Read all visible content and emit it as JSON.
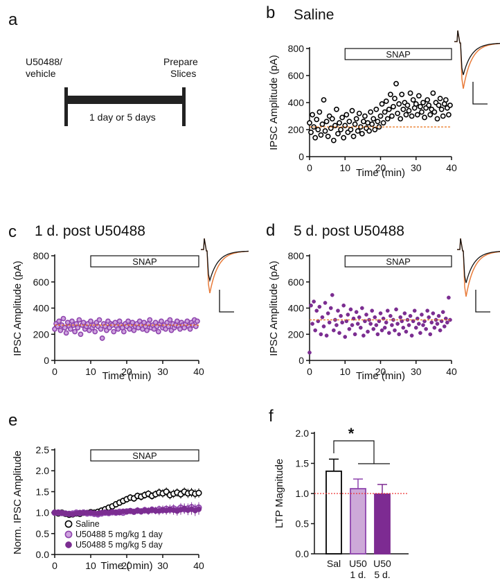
{
  "panel_labels": {
    "a": "a",
    "b": "b",
    "c": "c",
    "d": "d",
    "e": "e",
    "f": "f"
  },
  "timeline": {
    "start_label_line1": "U50488/",
    "start_label_line2": "vehicle",
    "end_label_line1": "Prepare",
    "end_label_line2": "Slices",
    "duration_label": "1 day or 5 days"
  },
  "colors": {
    "saline": "#000000",
    "u50_1day": "#8e44ad",
    "u50_1day_fill": "#c9a2d6",
    "u50_5day": "#7b2d91",
    "baseline_dash": "#e8731a",
    "trace_orange": "#e87b3a"
  },
  "chart_data": [
    {
      "id": "b",
      "type": "scatter",
      "title": "Saline",
      "xlabel": "Time  (min)",
      "ylabel": "IPSC Amplitude (pA)",
      "xlim": [
        0,
        40
      ],
      "ylim": [
        0,
        800
      ],
      "xticks": [
        "0",
        "10",
        "20",
        "30",
        "40"
      ],
      "yticks": [
        "0",
        "200",
        "400",
        "600",
        "800"
      ],
      "bar_label": "SNAP",
      "bar_range": [
        10,
        40
      ],
      "baseline": 220,
      "series": [
        {
          "marker": "open-circle",
          "color": "#000000",
          "x": [
            0,
            0.4,
            0.8,
            1.2,
            1.6,
            2,
            2.4,
            2.8,
            3.2,
            3.6,
            4,
            4.4,
            4.8,
            5.2,
            5.6,
            6,
            6.4,
            6.8,
            7.2,
            7.6,
            8,
            8.4,
            8.8,
            9.2,
            9.6,
            10,
            10.4,
            10.8,
            11.2,
            11.6,
            12,
            12.4,
            12.8,
            13.2,
            13.6,
            14,
            14.4,
            14.8,
            15.2,
            15.6,
            16,
            16.4,
            16.8,
            17.2,
            17.6,
            18,
            18.4,
            18.8,
            19.2,
            19.6,
            20,
            20.4,
            20.8,
            21.2,
            21.6,
            22,
            22.4,
            22.8,
            23.2,
            23.6,
            24,
            24.4,
            24.8,
            25.2,
            25.6,
            26,
            26.4,
            26.8,
            27.2,
            27.6,
            28,
            28.4,
            28.8,
            29.2,
            29.6,
            30,
            30.4,
            30.8,
            31.2,
            31.6,
            32,
            32.4,
            32.8,
            33.2,
            33.6,
            34,
            34.4,
            34.8,
            35.2,
            35.6,
            36,
            36.4,
            36.8,
            37.2,
            37.6,
            38,
            38.4,
            38.8,
            39.2,
            39.6
          ],
          "y": [
            250,
            180,
            310,
            220,
            140,
            275,
            200,
            330,
            160,
            240,
            420,
            190,
            260,
            150,
            300,
            210,
            280,
            120,
            230,
            350,
            170,
            250,
            200,
            290,
            140,
            230,
            310,
            180,
            260,
            200,
            340,
            150,
            240,
            280,
            190,
            320,
            220,
            170,
            260,
            300,
            210,
            250,
            190,
            330,
            240,
            280,
            200,
            350,
            260,
            220,
            300,
            390,
            250,
            330,
            410,
            280,
            350,
            460,
            300,
            370,
            430,
            540,
            320,
            390,
            280,
            460,
            350,
            400,
            310,
            380,
            340,
            470,
            300,
            420,
            360,
            390,
            310,
            450,
            370,
            330,
            400,
            290,
            360,
            420,
            380,
            310,
            350,
            470,
            330,
            400,
            280,
            380,
            430,
            350,
            300,
            390,
            420,
            360,
            310,
            380
          ]
        }
      ]
    },
    {
      "id": "c",
      "type": "scatter",
      "title": "1 d. post U50488",
      "xlabel": "Time  (min)",
      "ylabel": "IPSC Amplitude (pA)",
      "xlim": [
        0,
        40
      ],
      "ylim": [
        0,
        800
      ],
      "xticks": [
        "0",
        "10",
        "20",
        "30",
        "40"
      ],
      "yticks": [
        "0",
        "200",
        "400",
        "600",
        "800"
      ],
      "bar_label": "SNAP",
      "bar_range": [
        10,
        40
      ],
      "baseline": 270,
      "series": [
        {
          "marker": "light-circle",
          "color": "#8e44ad",
          "x": [
            0,
            0.4,
            0.8,
            1.2,
            1.6,
            2,
            2.4,
            2.8,
            3.2,
            3.6,
            4,
            4.4,
            4.8,
            5.2,
            5.6,
            6,
            6.4,
            6.8,
            7.2,
            7.6,
            8,
            8.4,
            8.8,
            9.2,
            9.6,
            10,
            10.4,
            10.8,
            11.2,
            11.6,
            12,
            12.4,
            12.8,
            13.2,
            13.6,
            14,
            14.4,
            14.8,
            15.2,
            15.6,
            16,
            16.4,
            16.8,
            17.2,
            17.6,
            18,
            18.4,
            18.8,
            19.2,
            19.6,
            20,
            20.4,
            20.8,
            21.2,
            21.6,
            22,
            22.4,
            22.8,
            23.2,
            23.6,
            24,
            24.4,
            24.8,
            25.2,
            25.6,
            26,
            26.4,
            26.8,
            27.2,
            27.6,
            28,
            28.4,
            28.8,
            29.2,
            29.6,
            30,
            30.4,
            30.8,
            31.2,
            31.6,
            32,
            32.4,
            32.8,
            33.2,
            33.6,
            34,
            34.4,
            34.8,
            35.2,
            35.6,
            36,
            36.4,
            36.8,
            37.2,
            37.6,
            38,
            38.4,
            38.8,
            39.2,
            39.6
          ],
          "y": [
            240,
            280,
            260,
            300,
            230,
            270,
            320,
            250,
            210,
            290,
            260,
            240,
            300,
            270,
            220,
            280,
            250,
            310,
            200,
            270,
            290,
            240,
            260,
            280,
            230,
            300,
            250,
            270,
            220,
            290,
            260,
            310,
            240,
            170,
            280,
            260,
            230,
            300,
            250,
            280,
            270,
            220,
            290,
            260,
            240,
            300,
            270,
            250,
            220,
            280,
            260,
            300,
            240,
            270,
            290,
            230,
            260,
            280,
            250,
            300,
            270,
            240,
            290,
            260,
            230,
            280,
            310,
            250,
            270,
            240,
            290,
            260,
            220,
            280,
            300,
            250,
            270,
            240,
            290,
            260,
            310,
            230,
            280,
            250,
            270,
            300,
            260,
            240,
            290,
            270,
            250,
            280,
            300,
            260,
            240,
            290,
            270,
            310,
            260,
            300
          ]
        }
      ]
    },
    {
      "id": "d",
      "type": "scatter",
      "title": "5 d. post U50488",
      "xlabel": "Time  (min)",
      "ylabel": "IPSC Amplitude (pA)",
      "xlim": [
        0,
        40
      ],
      "ylim": [
        0,
        800
      ],
      "xticks": [
        "0",
        "10",
        "20",
        "30",
        "40"
      ],
      "yticks": [
        "0",
        "200",
        "400",
        "600",
        "800"
      ],
      "bar_label": "SNAP",
      "bar_range": [
        10,
        40
      ],
      "baseline": 310,
      "series": [
        {
          "marker": "filled-circle",
          "color": "#7b2d91",
          "x": [
            0,
            0.4,
            0.8,
            1.2,
            1.6,
            2,
            2.4,
            2.8,
            3.2,
            3.6,
            4,
            4.4,
            4.8,
            5.2,
            5.6,
            6,
            6.4,
            6.8,
            7.2,
            7.6,
            8,
            8.4,
            8.8,
            9.2,
            9.6,
            10,
            10.4,
            10.8,
            11.2,
            11.6,
            12,
            12.4,
            12.8,
            13.2,
            13.6,
            14,
            14.4,
            14.8,
            15.2,
            15.6,
            16,
            16.4,
            16.8,
            17.2,
            17.6,
            18,
            18.4,
            18.8,
            19.2,
            19.6,
            20,
            20.4,
            20.8,
            21.2,
            21.6,
            22,
            22.4,
            22.8,
            23.2,
            23.6,
            24,
            24.4,
            24.8,
            25.2,
            25.6,
            26,
            26.4,
            26.8,
            27.2,
            27.6,
            28,
            28.4,
            28.8,
            29.2,
            29.6,
            30,
            30.4,
            30.8,
            31.2,
            31.6,
            32,
            32.4,
            32.8,
            33.2,
            33.6,
            34,
            34.4,
            34.8,
            35.2,
            35.6,
            36,
            36.4,
            36.8,
            37.2,
            37.6,
            38,
            38.4,
            38.8,
            39.2,
            39.6
          ],
          "y": [
            60,
            420,
            280,
            450,
            230,
            380,
            300,
            410,
            200,
            330,
            260,
            440,
            190,
            360,
            290,
            400,
            500,
            230,
            310,
            270,
            380,
            210,
            340,
            290,
            420,
            180,
            300,
            350,
            240,
            390,
            270,
            320,
            200,
            370,
            280,
            330,
            250,
            400,
            190,
            300,
            350,
            220,
            310,
            280,
            380,
            240,
            330,
            270,
            200,
            300,
            360,
            230,
            320,
            250,
            290,
            380,
            210,
            340,
            270,
            310,
            230,
            390,
            280,
            200,
            330,
            300,
            250,
            360,
            220,
            310,
            270,
            340,
            190,
            300,
            380,
            250,
            320,
            280,
            210,
            350,
            270,
            300,
            240,
            380,
            330,
            200,
            290,
            360,
            250,
            310,
            280,
            340,
            230,
            300,
            370,
            260,
            320,
            290,
            480,
            310
          ]
        }
      ]
    },
    {
      "id": "e",
      "type": "line",
      "title": "",
      "xlabel": "Time ( min)",
      "ylabel": "Norm. IPSC Amplitude",
      "xlim": [
        0,
        40
      ],
      "ylim": [
        0,
        2.5
      ],
      "xticks": [
        "0",
        "10",
        "20",
        "30",
        "40"
      ],
      "yticks": [
        "0.0",
        "0.5",
        "1.0",
        "1.5",
        "2.0",
        "2.5"
      ],
      "bar_label": "SNAP",
      "bar_range": [
        10,
        40
      ],
      "x": [
        0,
        1,
        2,
        3,
        4,
        5,
        6,
        7,
        8,
        9,
        10,
        11,
        12,
        13,
        14,
        15,
        16,
        17,
        18,
        19,
        20,
        21,
        22,
        23,
        24,
        25,
        26,
        27,
        28,
        29,
        30,
        31,
        32,
        33,
        34,
        35,
        36,
        37,
        38,
        39,
        40
      ],
      "series": [
        {
          "name": "Saline",
          "marker": "open-circle",
          "color": "#000000",
          "values": [
            1.0,
            0.98,
            1.0,
            0.97,
            0.95,
            0.96,
            0.98,
            0.97,
            1.0,
            0.99,
            1.01,
            1.0,
            1.02,
            1.05,
            1.08,
            1.12,
            1.15,
            1.2,
            1.24,
            1.28,
            1.32,
            1.36,
            1.34,
            1.4,
            1.38,
            1.42,
            1.45,
            1.4,
            1.44,
            1.48,
            1.46,
            1.5,
            1.42,
            1.45,
            1.48,
            1.44,
            1.5,
            1.46,
            1.48,
            1.45,
            1.47
          ],
          "err": [
            0.04,
            0.04,
            0.04,
            0.04,
            0.04,
            0.04,
            0.04,
            0.04,
            0.04,
            0.04,
            0.05,
            0.05,
            0.05,
            0.06,
            0.06,
            0.06,
            0.07,
            0.07,
            0.07,
            0.08,
            0.08,
            0.08,
            0.08,
            0.08,
            0.09,
            0.09,
            0.09,
            0.09,
            0.09,
            0.1,
            0.1,
            0.1,
            0.1,
            0.1,
            0.1,
            0.1,
            0.1,
            0.11,
            0.11,
            0.11,
            0.11
          ]
        },
        {
          "name": "U50488 5 mg/kg 1 day",
          "marker": "light-circle",
          "color": "#8e44ad",
          "values": [
            1.0,
            1.0,
            0.99,
            0.98,
            0.97,
            0.98,
            1.0,
            0.99,
            1.0,
            0.98,
            0.99,
            0.97,
            0.96,
            0.98,
            1.0,
            0.99,
            1.01,
            1.0,
            1.02,
            1.0,
            1.03,
            1.04,
            1.02,
            1.05,
            1.03,
            1.06,
            1.04,
            1.07,
            1.05,
            1.08,
            1.06,
            1.09,
            1.07,
            1.1,
            1.05,
            1.12,
            1.08,
            1.1,
            1.13,
            1.09,
            1.12
          ],
          "err": [
            0.03,
            0.03,
            0.03,
            0.03,
            0.03,
            0.04,
            0.04,
            0.04,
            0.04,
            0.04,
            0.04,
            0.05,
            0.05,
            0.05,
            0.05,
            0.05,
            0.06,
            0.06,
            0.06,
            0.06,
            0.06,
            0.07,
            0.07,
            0.07,
            0.07,
            0.08,
            0.08,
            0.08,
            0.08,
            0.09,
            0.09,
            0.09,
            0.1,
            0.1,
            0.1,
            0.11,
            0.11,
            0.12,
            0.12,
            0.12,
            0.13
          ]
        },
        {
          "name": "U50488 5 mg/kg 5 day",
          "marker": "filled-circle",
          "color": "#7b2d91",
          "values": [
            1.0,
            1.01,
            0.99,
            0.98,
            0.97,
            0.96,
            0.98,
            1.0,
            0.99,
            1.0,
            1.0,
            0.99,
            0.98,
            1.0,
            1.01,
            1.0,
            1.02,
            1.01,
            1.0,
            1.03,
            1.02,
            1.04,
            1.02,
            1.05,
            1.03,
            1.05,
            1.04,
            1.06,
            1.05,
            1.04,
            1.07,
            1.05,
            1.08,
            1.06,
            1.04,
            1.07,
            1.1,
            1.06,
            1.08,
            1.05,
            1.08
          ],
          "err": [
            0.03,
            0.03,
            0.03,
            0.03,
            0.04,
            0.04,
            0.04,
            0.04,
            0.04,
            0.04,
            0.05,
            0.05,
            0.05,
            0.05,
            0.05,
            0.06,
            0.06,
            0.06,
            0.06,
            0.07,
            0.07,
            0.07,
            0.07,
            0.08,
            0.08,
            0.08,
            0.09,
            0.09,
            0.09,
            0.1,
            0.1,
            0.1,
            0.11,
            0.11,
            0.11,
            0.12,
            0.12,
            0.12,
            0.13,
            0.13,
            0.13
          ]
        }
      ]
    },
    {
      "id": "f",
      "type": "bar",
      "title": "",
      "xlabel": "",
      "ylabel": "LTP Magnitude",
      "ylim": [
        0,
        2.0
      ],
      "yticks": [
        "0.0",
        "0.5",
        "1.0",
        "1.5",
        "2.0"
      ],
      "categories": [
        [
          "Sal"
        ],
        [
          "U50",
          "1 d."
        ],
        [
          "U50",
          "5 d."
        ]
      ],
      "values": [
        1.37,
        1.08,
        0.99
      ],
      "errors": [
        0.2,
        0.16,
        0.16
      ],
      "bar_fills": [
        "#ffffff",
        "#cda9d8",
        "#7d2b92"
      ],
      "bar_strokes": [
        "#000000",
        "#8e44ad",
        "#7d2b92"
      ],
      "reference_line": 1.0,
      "significance_marker": "*"
    }
  ]
}
